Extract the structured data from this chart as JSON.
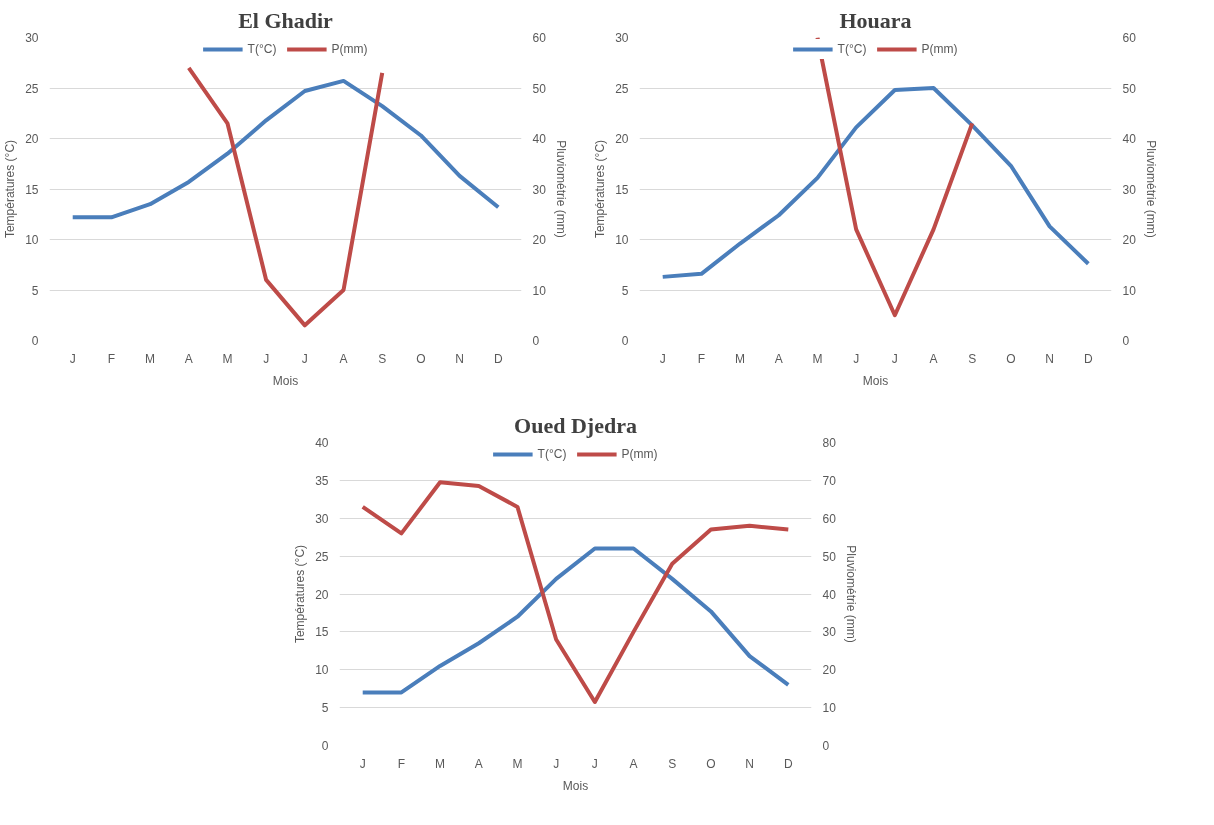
{
  "chart_data": [
    {
      "type": "line",
      "title": "El Ghadir",
      "xlabel": "Mois",
      "ylabel": "Températures (°C)",
      "y2label": "Pluviométrie (mm)",
      "categories": [
        "J",
        "F",
        "M",
        "A",
        "M",
        "J",
        "J",
        "A",
        "S",
        "O",
        "N",
        "D"
      ],
      "ylim": [
        0,
        30
      ],
      "yticks": [
        0,
        5,
        10,
        15,
        20,
        25,
        30
      ],
      "y2lim": [
        0,
        60
      ],
      "y2ticks": [
        0,
        10,
        20,
        30,
        40,
        50,
        60
      ],
      "grid": "y",
      "legend": "top",
      "series": [
        {
          "name": "T(°C)",
          "color": "#4a7ebb",
          "values": [
            12.2,
            12.2,
            13.5,
            15.7,
            18.5,
            21.8,
            24.7,
            25.7,
            23.2,
            20.3,
            16.3,
            13.2
          ]
        },
        {
          "name": "P(mm)",
          "color": "#be4b48",
          "axis": "y2",
          "values": [
            null,
            null,
            null,
            54,
            43,
            12,
            3,
            10,
            53,
            null,
            null,
            null
          ]
        }
      ]
    },
    {
      "type": "line",
      "title": "Houara",
      "xlabel": "Mois",
      "ylabel": "Températures (°C)",
      "y2label": "Pluviométrie (mm)",
      "categories": [
        "J",
        "F",
        "M",
        "A",
        "M",
        "J",
        "J",
        "A",
        "S",
        "O",
        "N",
        "D"
      ],
      "ylim": [
        0,
        30
      ],
      "yticks": [
        0,
        5,
        10,
        15,
        20,
        25,
        30
      ],
      "y2lim": [
        0,
        60
      ],
      "y2ticks": [
        0,
        10,
        20,
        30,
        40,
        50,
        60
      ],
      "grid": "y",
      "legend": "top",
      "series": [
        {
          "name": "T(°C)",
          "color": "#4a7ebb",
          "values": [
            6.3,
            6.6,
            9.6,
            12.4,
            16.1,
            21.1,
            24.8,
            25,
            21.3,
            17.3,
            11.3,
            7.6
          ]
        },
        {
          "name": "P(mm)",
          "color": "#be4b48",
          "axis": "y2",
          "values": [
            null,
            null,
            null,
            null,
            60,
            22,
            5,
            22,
            43,
            null,
            null,
            null
          ]
        }
      ]
    },
    {
      "type": "line",
      "title": "Oued Djedra",
      "xlabel": "Mois",
      "ylabel": "Températures (°C)",
      "y2label": "Pluviométrie (mm)",
      "categories": [
        "J",
        "F",
        "M",
        "A",
        "M",
        "J",
        "J",
        "A",
        "S",
        "O",
        "N",
        "D"
      ],
      "ylim": [
        0,
        40
      ],
      "yticks": [
        0,
        5,
        10,
        15,
        20,
        25,
        30,
        35,
        40
      ],
      "y2lim": [
        0,
        80
      ],
      "y2ticks": [
        0,
        10,
        20,
        30,
        40,
        50,
        60,
        70,
        80
      ],
      "grid": "y",
      "legend": "top",
      "series": [
        {
          "name": "T(°C)",
          "color": "#4a7ebb",
          "values": [
            7,
            7,
            10.5,
            13.5,
            17,
            22,
            26,
            26,
            22,
            17.7,
            11.8,
            8
          ]
        },
        {
          "name": "P(mm)",
          "color": "#be4b48",
          "axis": "y2",
          "values": [
            63,
            56,
            69.5,
            68.5,
            63,
            28,
            11.5,
            30,
            48,
            57,
            58,
            57
          ]
        }
      ]
    }
  ]
}
